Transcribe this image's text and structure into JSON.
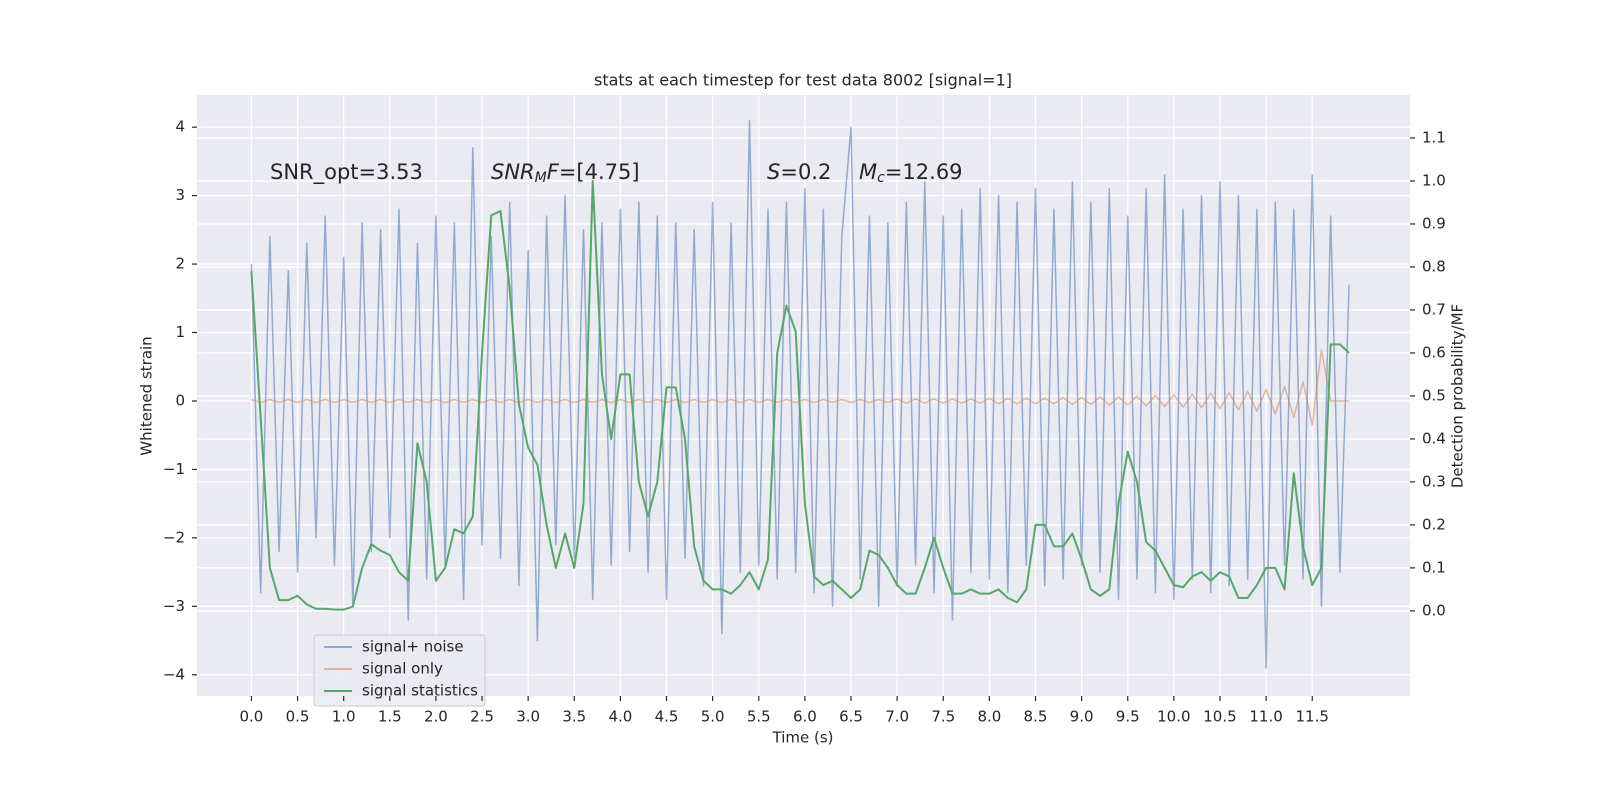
{
  "chart_data": {
    "type": "line",
    "title": "stats at each timestep for test data 8002 [signal=1]",
    "xlabel": "Time (s)",
    "ylabel": "Whitened strain",
    "y2label": "Detection probability/MF",
    "grid": true,
    "legend": "lower left",
    "xlim": [
      -0.59,
      12.56
    ],
    "ylim": [
      -4.31,
      4.47
    ],
    "y2lim": [
      -0.198,
      1.2
    ],
    "xticks": [
      {
        "value": 0,
        "label": "0.0"
      },
      0.5,
      {
        "value": 1,
        "label": "1.0"
      },
      1.5,
      {
        "value": 2,
        "label": "2.0"
      },
      2.5,
      {
        "value": 3,
        "label": "3.0"
      },
      3.5,
      {
        "value": 4,
        "label": "4.0"
      },
      4.5,
      {
        "value": 5,
        "label": "5.0"
      },
      5.5,
      {
        "value": 6,
        "label": "6.0"
      },
      6.5,
      {
        "value": 7,
        "label": "7.0"
      },
      7.5,
      {
        "value": 8,
        "label": "8.0"
      },
      8.5,
      {
        "value": 9,
        "label": "9.0"
      },
      9.5,
      {
        "value": 10,
        "label": "10.0"
      },
      10.5,
      {
        "value": 11,
        "label": "11.0"
      },
      11.5
    ],
    "yticks": [
      {
        "value": -4,
        "label": "−4"
      },
      {
        "value": -3,
        "label": "−3"
      },
      {
        "value": -2,
        "label": "−2"
      },
      {
        "value": -1,
        "label": "−1"
      },
      0,
      1,
      2,
      3,
      4
    ],
    "y2ticks": [
      {
        "value": 0,
        "label": "0.0"
      },
      0.1,
      0.2,
      0.3,
      0.4,
      0.5,
      0.6,
      0.7,
      0.8,
      0.9,
      {
        "value": 1,
        "label": "1.0"
      },
      1.1
    ],
    "annotations": [
      [
        {
          "t": "SNR_opt=3.53"
        }
      ],
      [
        {
          "t": "SNR",
          "style": "italic"
        },
        {
          "t": "M",
          "style": "sub"
        },
        {
          "t": "F",
          "style": "italic"
        },
        {
          "t": "=[4.75]"
        }
      ],
      [
        {
          "t": "S",
          "style": "italic"
        },
        {
          "t": "=0.2"
        }
      ],
      [
        {
          "t": "M",
          "style": "italic"
        },
        {
          "t": "c",
          "style": "sub"
        },
        {
          "t": "=12.69"
        }
      ]
    ],
    "x": [
      0,
      0.1,
      0.2,
      0.3,
      0.4,
      0.5,
      0.6,
      0.7,
      0.8,
      0.9,
      1,
      1.1,
      1.2,
      1.3,
      1.4,
      1.5,
      1.6,
      1.7,
      1.8,
      1.9,
      2,
      2.1,
      2.2,
      2.3,
      2.4,
      2.5,
      2.6,
      2.7,
      2.8,
      2.9,
      3,
      3.1,
      3.2,
      3.3,
      3.4,
      3.5,
      3.6,
      3.7,
      3.8,
      3.9,
      4,
      4.1,
      4.2,
      4.3,
      4.4,
      4.5,
      4.6,
      4.7,
      4.8,
      4.9,
      5,
      5.1,
      5.2,
      5.3,
      5.4,
      5.5,
      5.6,
      5.7,
      5.8,
      5.9,
      6,
      6.1,
      6.2,
      6.3,
      6.4,
      6.5,
      6.6,
      6.7,
      6.8,
      6.9,
      7,
      7.1,
      7.2,
      7.3,
      7.4,
      7.5,
      7.6,
      7.7,
      7.8,
      7.9,
      8,
      8.1,
      8.2,
      8.3,
      8.4,
      8.5,
      8.6,
      8.7,
      8.8,
      8.9,
      9,
      9.1,
      9.2,
      9.3,
      9.4,
      9.5,
      9.6,
      9.7,
      9.8,
      9.9,
      10,
      10.1,
      10.2,
      10.3,
      10.4,
      10.5,
      10.6,
      10.7,
      10.8,
      10.9,
      11,
      11.1,
      11.2,
      11.3,
      11.4,
      11.5,
      11.6,
      11.7,
      11.8,
      11.9
    ],
    "series": [
      {
        "name": "signal+ noise",
        "color": "#4c72b0",
        "values": [
          2.0,
          -2.8,
          2.4,
          -2.2,
          1.9,
          -2.5,
          2.3,
          -2.0,
          2.7,
          -2.4,
          2.1,
          -3.0,
          2.6,
          -2.2,
          2.5,
          -2.0,
          2.8,
          -3.2,
          2.3,
          -2.6,
          2.7,
          -2.4,
          2.6,
          -2.9,
          3.7,
          -2.1,
          2.4,
          -2.3,
          2.9,
          -2.7,
          2.2,
          -3.5,
          2.7,
          -2.1,
          3.0,
          -2.3,
          2.5,
          -2.9,
          2.6,
          -2.4,
          2.8,
          -2.2,
          2.9,
          -2.5,
          2.7,
          -2.9,
          2.6,
          -2.3,
          2.5,
          -2.7,
          2.9,
          -3.4,
          2.6,
          -2.5,
          4.1,
          -2.4,
          2.8,
          -2.6,
          2.9,
          -2.5,
          3.1,
          -2.8,
          2.8,
          -3.0,
          2.4,
          4.0,
          -2.6,
          2.7,
          -3.0,
          2.6,
          -2.7,
          2.9,
          -2.4,
          3.2,
          -2.8,
          2.7,
          -3.2,
          2.8,
          -2.5,
          3.1,
          -2.6,
          3.0,
          -2.8,
          2.9,
          -2.4,
          3.1,
          -2.7,
          2.8,
          -2.6,
          3.2,
          -2.4,
          2.9,
          -2.5,
          3.1,
          -2.9,
          2.7,
          -2.6,
          3.1,
          -2.8,
          3.3,
          -2.9,
          2.8,
          -2.6,
          3.0,
          -2.8,
          3.2,
          -2.7,
          3.0,
          -2.6,
          2.8,
          -3.9,
          2.9,
          -2.4,
          2.8,
          -2.6,
          3.3,
          -3.0,
          2.7,
          -2.5,
          1.7
        ]
      },
      {
        "name": "signal only",
        "color": "#dd8452",
        "values": [
          0.02,
          -0.02,
          0.02,
          -0.02,
          0.02,
          -0.02,
          0.02,
          -0.02,
          0.02,
          -0.02,
          0.02,
          -0.02,
          0.02,
          -0.02,
          0.02,
          -0.02,
          0.02,
          -0.02,
          0.02,
          -0.02,
          0.02,
          -0.02,
          0.02,
          -0.02,
          0.02,
          -0.02,
          0.02,
          -0.02,
          0.02,
          -0.02,
          0.02,
          -0.02,
          0.02,
          -0.02,
          0.02,
          -0.02,
          0.02,
          -0.02,
          0.02,
          -0.02,
          0.02,
          -0.02,
          0.02,
          -0.02,
          0.02,
          -0.02,
          0.02,
          -0.02,
          0.02,
          -0.02,
          0.02,
          -0.02,
          0.02,
          -0.02,
          0.02,
          -0.02,
          0.02,
          -0.02,
          0.02,
          -0.02,
          0.02,
          -0.02,
          0.02,
          -0.02,
          0.02,
          -0.02,
          0.02,
          -0.02,
          0.02,
          -0.02,
          0.03,
          -0.03,
          0.03,
          -0.03,
          0.03,
          -0.03,
          0.03,
          -0.03,
          0.03,
          -0.03,
          0.04,
          -0.04,
          0.04,
          -0.04,
          0.04,
          -0.04,
          0.04,
          -0.04,
          0.05,
          -0.05,
          0.05,
          -0.05,
          0.06,
          -0.06,
          0.06,
          -0.06,
          0.07,
          -0.07,
          0.08,
          -0.08,
          0.09,
          -0.09,
          0.1,
          -0.1,
          0.11,
          -0.11,
          0.12,
          -0.13,
          0.14,
          -0.15,
          0.17,
          -0.19,
          0.21,
          -0.24,
          0.28,
          -0.35,
          0.75,
          0,
          0,
          0
        ]
      },
      {
        "name": "signal statistics",
        "color": "#55a868",
        "axis": "y2",
        "values": [
          0.79,
          0.45,
          0.1,
          0.025,
          0.025,
          0.035,
          0.015,
          0.005,
          0.005,
          0.003,
          0.003,
          0.01,
          0.1,
          0.155,
          0.14,
          0.13,
          0.09,
          0.07,
          0.39,
          0.3,
          0.07,
          0.1,
          0.19,
          0.18,
          0.22,
          0.6,
          0.92,
          0.93,
          0.75,
          0.48,
          0.38,
          0.34,
          0.2,
          0.1,
          0.18,
          0.1,
          0.25,
          1.0,
          0.55,
          0.4,
          0.55,
          0.55,
          0.3,
          0.22,
          0.3,
          0.52,
          0.52,
          0.4,
          0.15,
          0.07,
          0.05,
          0.05,
          0.04,
          0.06,
          0.09,
          0.05,
          0.12,
          0.6,
          0.71,
          0.65,
          0.25,
          0.08,
          0.06,
          0.07,
          0.05,
          0.03,
          0.05,
          0.14,
          0.13,
          0.1,
          0.06,
          0.04,
          0.04,
          0.1,
          0.17,
          0.1,
          0.04,
          0.04,
          0.05,
          0.04,
          0.04,
          0.05,
          0.03,
          0.02,
          0.05,
          0.2,
          0.2,
          0.15,
          0.15,
          0.18,
          0.12,
          0.05,
          0.035,
          0.05,
          0.25,
          0.37,
          0.3,
          0.16,
          0.14,
          0.1,
          0.06,
          0.055,
          0.08,
          0.09,
          0.07,
          0.09,
          0.08,
          0.03,
          0.03,
          0.06,
          0.1,
          0.1,
          0.05,
          0.32,
          0.15,
          0.06,
          0.1,
          0.62,
          0.62,
          0.6
        ]
      }
    ]
  }
}
